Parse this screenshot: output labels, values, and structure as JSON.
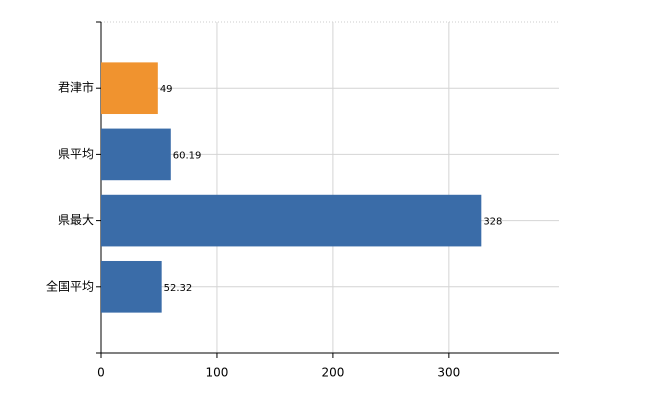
{
  "chart_data": {
    "type": "hbar",
    "categories": [
      "君津市",
      "県平均",
      "県最大",
      "全国平均"
    ],
    "values": [
      49,
      60.19,
      328,
      52.32
    ],
    "colors": [
      "#f0932f",
      "#3a6ca8",
      "#3a6ca8",
      "#3a6ca8"
    ],
    "xlim": [
      0,
      395
    ],
    "xticks": [
      0,
      100,
      200,
      300
    ],
    "grid": true
  }
}
